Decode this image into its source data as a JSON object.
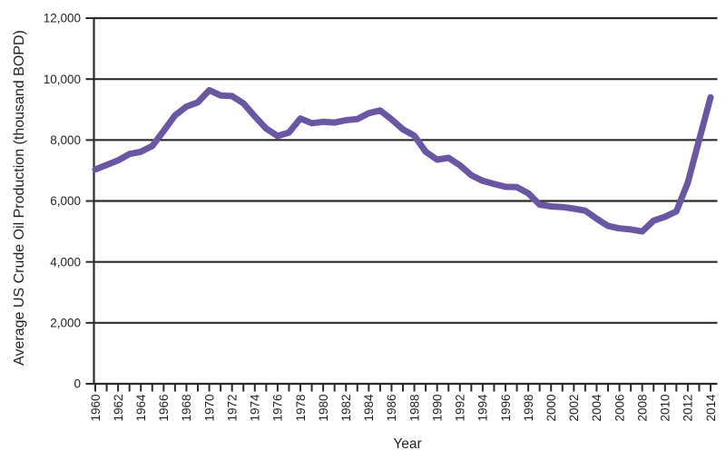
{
  "chart_data": {
    "type": "line",
    "title": "",
    "xlabel": "Year",
    "ylabel": "Average US Crude Oil Production (thousand BOPD)",
    "x": [
      1960,
      1961,
      1962,
      1963,
      1964,
      1965,
      1966,
      1967,
      1968,
      1969,
      1970,
      1971,
      1972,
      1973,
      1974,
      1975,
      1976,
      1977,
      1978,
      1979,
      1980,
      1981,
      1982,
      1983,
      1984,
      1985,
      1986,
      1987,
      1988,
      1989,
      1990,
      1991,
      1992,
      1993,
      1994,
      1995,
      1996,
      1997,
      1998,
      1999,
      2000,
      2001,
      2002,
      2003,
      2004,
      2005,
      2006,
      2007,
      2008,
      2009,
      2010,
      2011,
      2012,
      2013,
      2014
    ],
    "values": [
      7035,
      7183,
      7332,
      7542,
      7614,
      7804,
      8295,
      8810,
      9096,
      9238,
      9637,
      9463,
      9441,
      9208,
      8774,
      8375,
      8132,
      8245,
      8707,
      8552,
      8597,
      8572,
      8649,
      8688,
      8879,
      8971,
      8680,
      8349,
      8140,
      7613,
      7355,
      7417,
      7171,
      6847,
      6662,
      6560,
      6465,
      6452,
      6252,
      5881,
      5822,
      5801,
      5746,
      5681,
      5419,
      5178,
      5102,
      5064,
      5000,
      5353,
      5482,
      5659,
      6600,
      8000,
      9400
    ],
    "ylim": [
      0,
      12000
    ],
    "ytick_step": 2000,
    "ytick_labels": [
      "0",
      "2,000",
      "4,000",
      "6,000",
      "8,000",
      "10,000",
      "12,000"
    ],
    "xtick_label_every": 2,
    "grid": "horizontal",
    "legend": "none",
    "line_color": "#6A56A3",
    "axis_color": "#2B2B2B",
    "text_color": "#231F20",
    "background": "#FFFFFF"
  }
}
